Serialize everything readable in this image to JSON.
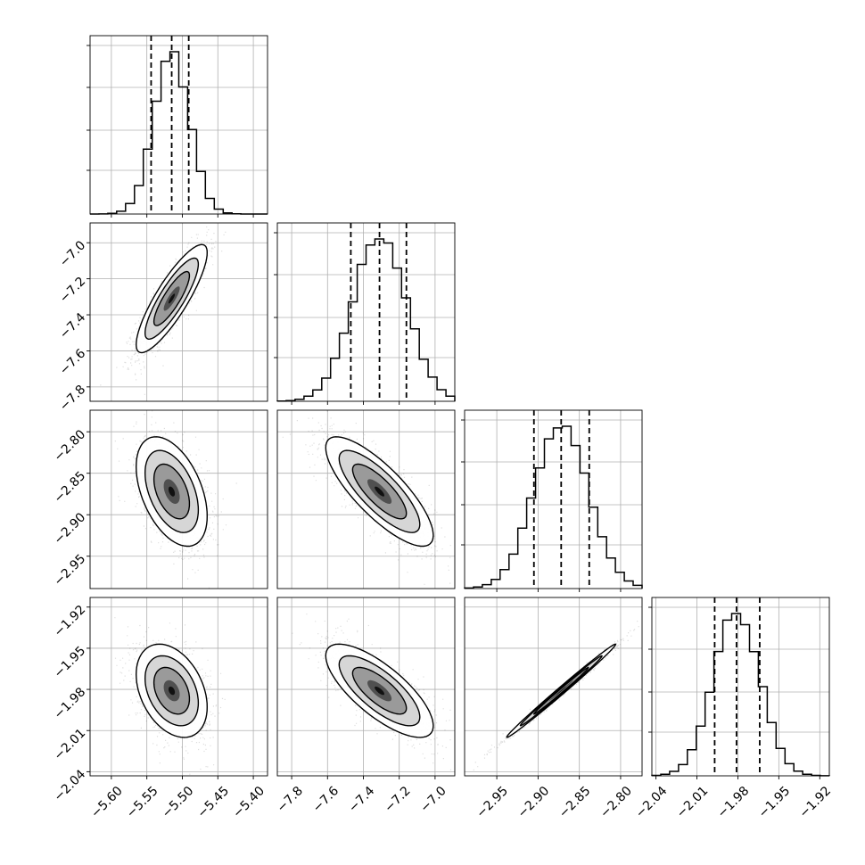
{
  "chart_data": {
    "type": "corner",
    "grid": true,
    "parameters": [
      {
        "index": 0,
        "label": "",
        "range": [
          -5.63,
          -5.38
        ],
        "median": -5.515,
        "quantiles": [
          -5.544,
          -5.515,
          -5.491
        ],
        "std": 0.025,
        "ticks": [
          -5.6,
          -5.55,
          -5.5,
          -5.45,
          -5.4
        ],
        "tick_labels": [
          "−5.60",
          "−5.55",
          "−5.50",
          "−5.45",
          "−5.40"
        ]
      },
      {
        "index": 1,
        "label": "",
        "range": [
          -7.88,
          -6.89
        ],
        "median": -7.31,
        "quantiles": [
          -7.47,
          -7.31,
          -7.16
        ],
        "std": 0.15,
        "ticks": [
          -7.8,
          -7.6,
          -7.4,
          -7.2,
          -7.0
        ],
        "tick_labels": [
          "−7.8",
          "−7.6",
          "−7.4",
          "−7.2",
          "−7.0"
        ]
      },
      {
        "index": 2,
        "label": "",
        "range": [
          -2.989,
          -2.774
        ],
        "median": -2.872,
        "quantiles": [
          -2.905,
          -2.872,
          -2.838
        ],
        "std": 0.033,
        "ticks": [
          -2.95,
          -2.9,
          -2.85,
          -2.8
        ],
        "tick_labels": [
          "−2.95",
          "−2.90",
          "−2.85",
          "−2.80"
        ]
      },
      {
        "index": 3,
        "label": "",
        "range": [
          -2.043,
          -1.913
        ],
        "median": -1.981,
        "quantiles": [
          -1.997,
          -1.981,
          -1.964
        ],
        "std": 0.017,
        "ticks": [
          -2.04,
          -2.01,
          -1.98,
          -1.95,
          -1.92
        ],
        "tick_labels": [
          "−2.04",
          "−2.01",
          "−1.98",
          "−1.95",
          "−1.92"
        ]
      }
    ],
    "correlations": [
      [
        1.0,
        0.85,
        -0.45,
        -0.35
      ],
      [
        0.85,
        1.0,
        -0.8,
        -0.75
      ],
      [
        -0.45,
        -0.8,
        1.0,
        0.995
      ],
      [
        -0.35,
        -0.75,
        0.995,
        1.0
      ]
    ],
    "histogram_bins": 20,
    "scatter_color": "#000000",
    "contour_levels": [
      "1-sigma",
      "1.5-sigma",
      "2-sigma"
    ]
  }
}
